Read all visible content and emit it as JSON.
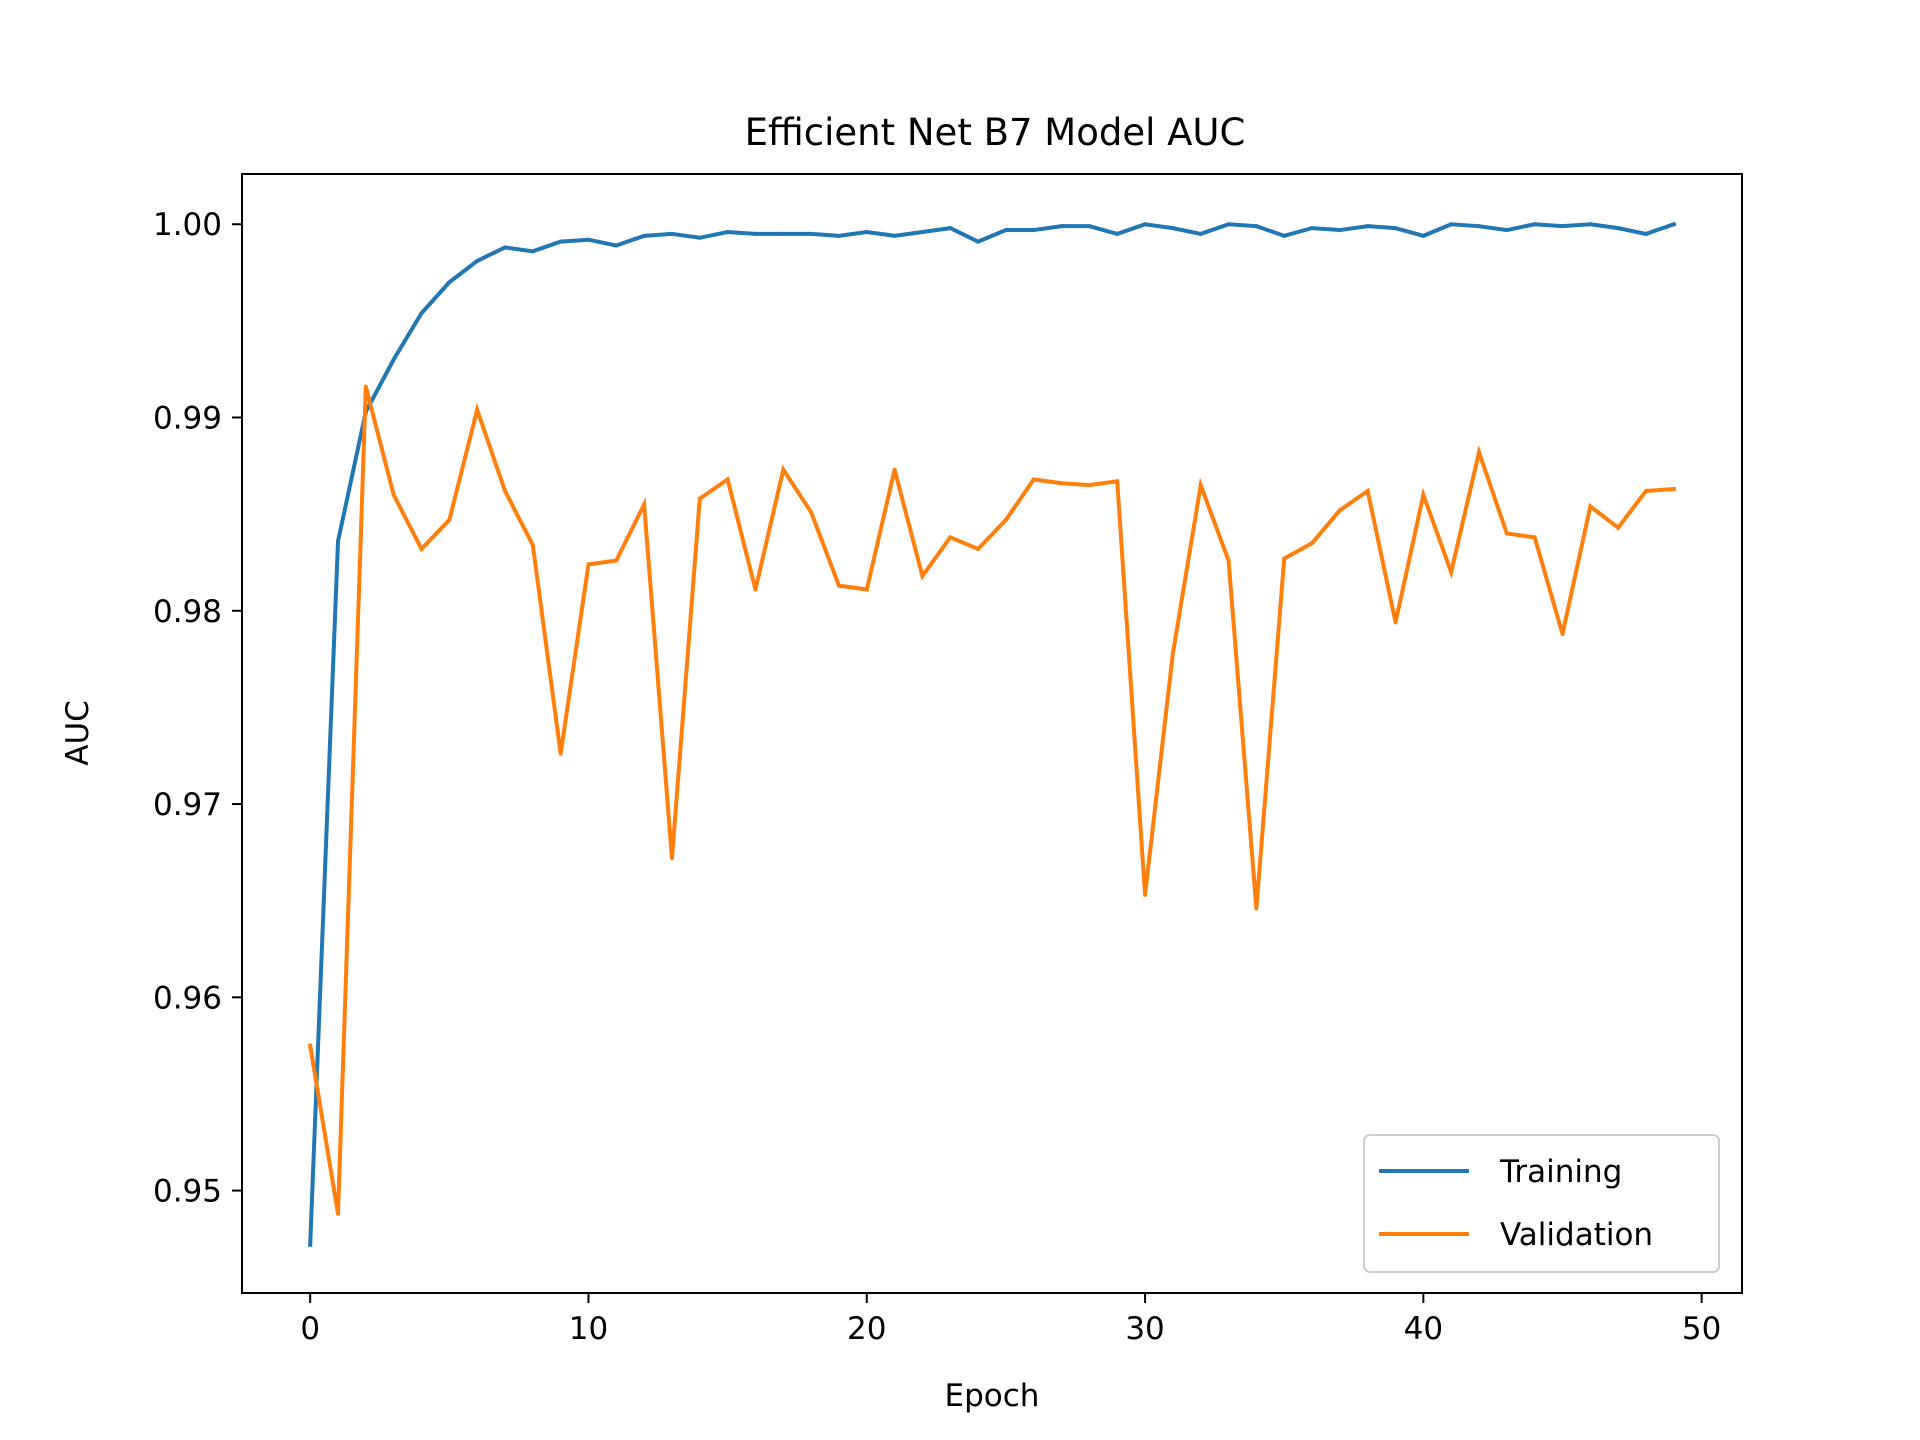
{
  "chart_data": {
    "type": "line",
    "title": "Efficient Net B7 Model AUC",
    "xlabel": "Epoch",
    "ylabel": "AUC",
    "xlim": [
      -2.45,
      51.45
    ],
    "ylim": [
      0.9447,
      1.0026
    ],
    "xticks": [
      0,
      10,
      20,
      30,
      40,
      50
    ],
    "yticks": [
      0.95,
      0.96,
      0.97,
      0.98,
      0.99,
      1.0
    ],
    "ytick_labels": [
      "0.95",
      "0.96",
      "0.97",
      "0.98",
      "0.99",
      "1.00"
    ],
    "grid": false,
    "legend_position": "lower-right",
    "x": [
      0,
      1,
      2,
      3,
      4,
      5,
      6,
      7,
      8,
      9,
      10,
      11,
      12,
      13,
      14,
      15,
      16,
      17,
      18,
      19,
      20,
      21,
      22,
      23,
      24,
      25,
      26,
      27,
      28,
      29,
      30,
      31,
      32,
      33,
      34,
      35,
      36,
      37,
      38,
      39,
      40,
      41,
      42,
      43,
      44,
      45,
      46,
      47,
      48,
      49
    ],
    "series": [
      {
        "name": "Training",
        "color": "#1f77b4",
        "values": [
          0.9472,
          0.9836,
          0.9903,
          0.993,
          0.9954,
          0.997,
          0.9981,
          0.9988,
          0.9986,
          0.9991,
          0.9992,
          0.9989,
          0.9994,
          0.9995,
          0.9993,
          0.9996,
          0.9995,
          0.9995,
          0.9995,
          0.9994,
          0.9996,
          0.9994,
          0.9996,
          0.9998,
          0.9991,
          0.9997,
          0.9997,
          0.9999,
          0.9999,
          0.9995,
          1.0,
          0.9998,
          0.9995,
          1.0,
          0.9999,
          0.9994,
          0.9998,
          0.9997,
          0.9999,
          0.9998,
          0.9994,
          1.0,
          0.9999,
          0.9997,
          1.0,
          0.9999,
          1.0,
          0.9998,
          0.9995,
          1.0
        ]
      },
      {
        "name": "Validation",
        "color": "#ff7f0e",
        "values": [
          0.9575,
          0.9488,
          0.9916,
          0.986,
          0.9832,
          0.9847,
          0.9904,
          0.9862,
          0.9834,
          0.9726,
          0.9824,
          0.9826,
          0.9855,
          0.9672,
          0.9858,
          0.9868,
          0.9811,
          0.9873,
          0.9851,
          0.9813,
          0.9811,
          0.9873,
          0.9818,
          0.9838,
          0.9832,
          0.9847,
          0.9868,
          0.9866,
          0.9865,
          0.9867,
          0.9653,
          0.9778,
          0.9865,
          0.9826,
          0.9646,
          0.9827,
          0.9835,
          0.9852,
          0.9862,
          0.9794,
          0.986,
          0.982,
          0.9882,
          0.984,
          0.9838,
          0.9788,
          0.9854,
          0.9843,
          0.9862,
          0.9863
        ]
      }
    ]
  }
}
